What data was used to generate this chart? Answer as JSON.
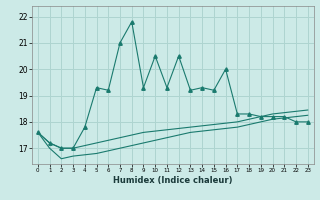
{
  "xlabel": "Humidex (Indice chaleur)",
  "x": [
    0,
    1,
    2,
    3,
    4,
    5,
    6,
    7,
    8,
    9,
    10,
    11,
    12,
    13,
    14,
    15,
    16,
    17,
    18,
    19,
    20,
    21,
    22,
    23
  ],
  "main_y": [
    17.6,
    17.2,
    17.0,
    17.0,
    17.8,
    19.3,
    19.2,
    21.0,
    21.8,
    19.3,
    20.5,
    19.3,
    20.5,
    19.2,
    19.3,
    19.2,
    20.0,
    18.3,
    18.3,
    18.2,
    18.2,
    18.2,
    18.0,
    18.0
  ],
  "line2_y": [
    17.6,
    17.2,
    17.0,
    17.0,
    17.1,
    17.2,
    17.3,
    17.4,
    17.5,
    17.6,
    17.65,
    17.7,
    17.75,
    17.8,
    17.85,
    17.9,
    17.95,
    18.0,
    18.1,
    18.2,
    18.3,
    18.35,
    18.4,
    18.45
  ],
  "line3_y": [
    17.6,
    17.0,
    16.6,
    16.7,
    16.75,
    16.8,
    16.9,
    17.0,
    17.1,
    17.2,
    17.3,
    17.4,
    17.5,
    17.6,
    17.65,
    17.7,
    17.75,
    17.8,
    17.9,
    18.0,
    18.1,
    18.15,
    18.2,
    18.25
  ],
  "ylim": [
    16.4,
    22.4
  ],
  "xlim": [
    -0.5,
    23.5
  ],
  "yticks": [
    17,
    18,
    19,
    20,
    21,
    22
  ],
  "xticks": [
    0,
    1,
    2,
    3,
    4,
    5,
    6,
    7,
    8,
    9,
    10,
    11,
    12,
    13,
    14,
    15,
    16,
    17,
    18,
    19,
    20,
    21,
    22,
    23
  ],
  "bg_color": "#cceae7",
  "grid_color": "#aed4d0",
  "line_color": "#1a7a6e",
  "marker": "^",
  "marker_size": 3
}
